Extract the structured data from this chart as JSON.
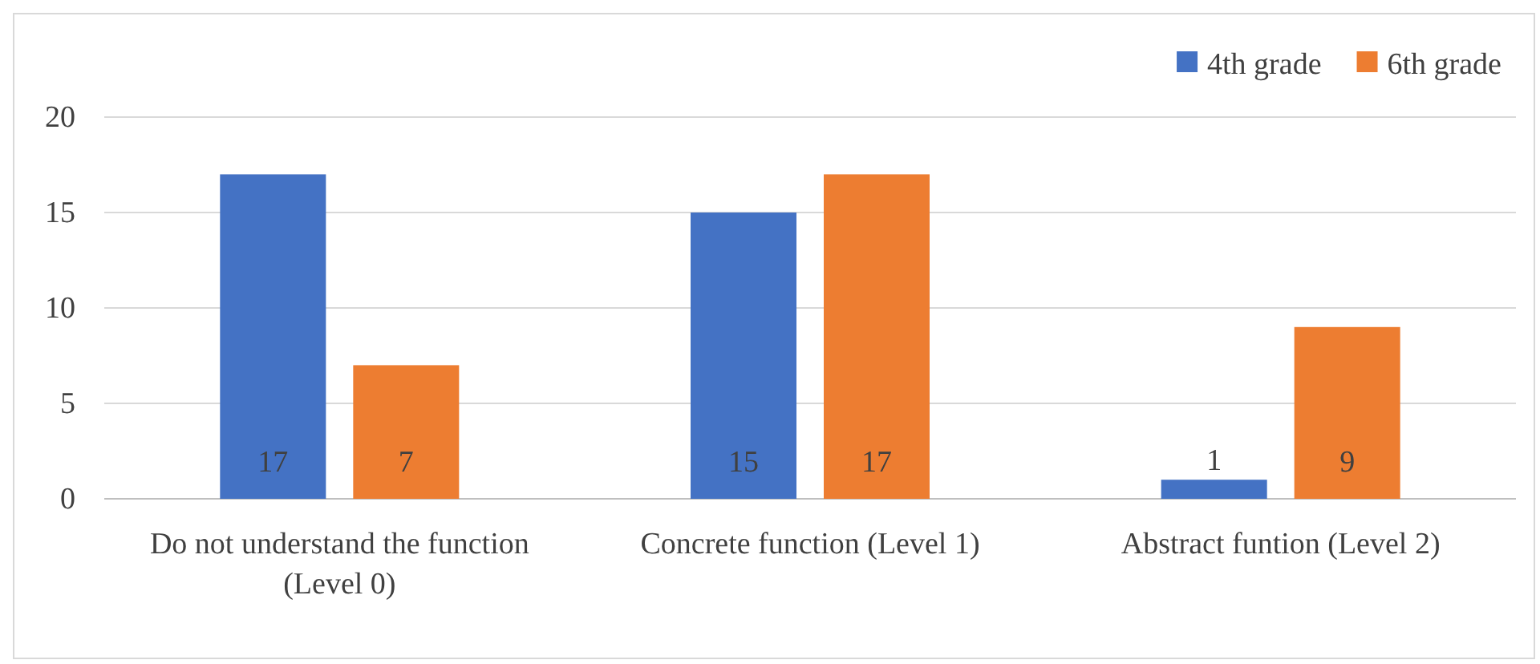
{
  "chart_data": {
    "type": "bar",
    "categories": [
      "Do not understand the function (Level 0)",
      "Concrete function (Level 1)",
      "Abstract funtion (Level 2)"
    ],
    "series": [
      {
        "name": "4th grade",
        "color": "#4472c4",
        "values": [
          17,
          15,
          1
        ]
      },
      {
        "name": "6th grade",
        "color": "#ed7d31",
        "values": [
          7,
          17,
          9
        ]
      }
    ],
    "ylim": [
      0,
      20
    ],
    "yticks": [
      0,
      5,
      10,
      15,
      20
    ],
    "grid": "y",
    "legend": "top right",
    "data_labels": true
  }
}
